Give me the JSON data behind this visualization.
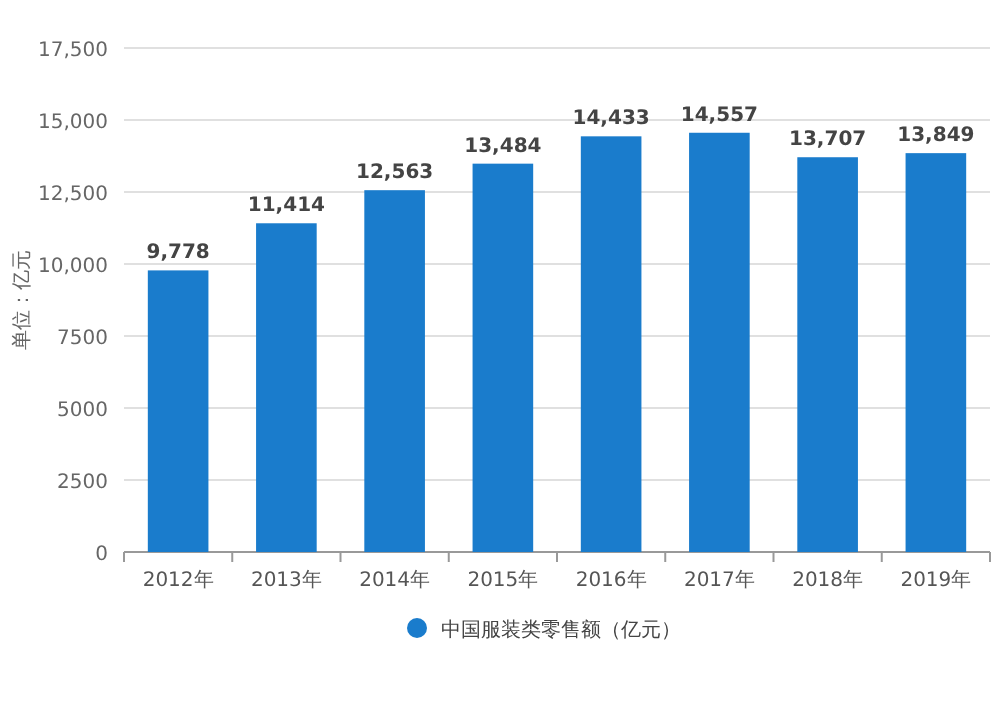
{
  "chart_data": {
    "type": "bar",
    "ylabel": "单位：亿元",
    "categories": [
      "2012年",
      "2013年",
      "2014年",
      "2015年",
      "2016年",
      "2017年",
      "2018年",
      "2019年"
    ],
    "series": [
      {
        "name": "中国服装类零售额（亿元）",
        "color": "#1a7ccc",
        "values": [
          9778,
          11414,
          12563,
          13484,
          14433,
          14557,
          13707,
          13849
        ],
        "value_labels": [
          "9,778",
          "11,414",
          "12,563",
          "13,484",
          "14,433",
          "14,557",
          "13,707",
          "13,849"
        ]
      }
    ],
    "ylim": [
      0,
      17500
    ],
    "yticks": [
      0,
      2500,
      5000,
      7500,
      {
        "value": 10000,
        "label": "10,000"
      },
      {
        "value": 12500,
        "label": "12,500"
      },
      {
        "value": 15000,
        "label": "15,000"
      },
      {
        "value": 17500,
        "label": "17,500"
      }
    ],
    "grid": "y",
    "legend": "bottom",
    "marker": "circle"
  }
}
